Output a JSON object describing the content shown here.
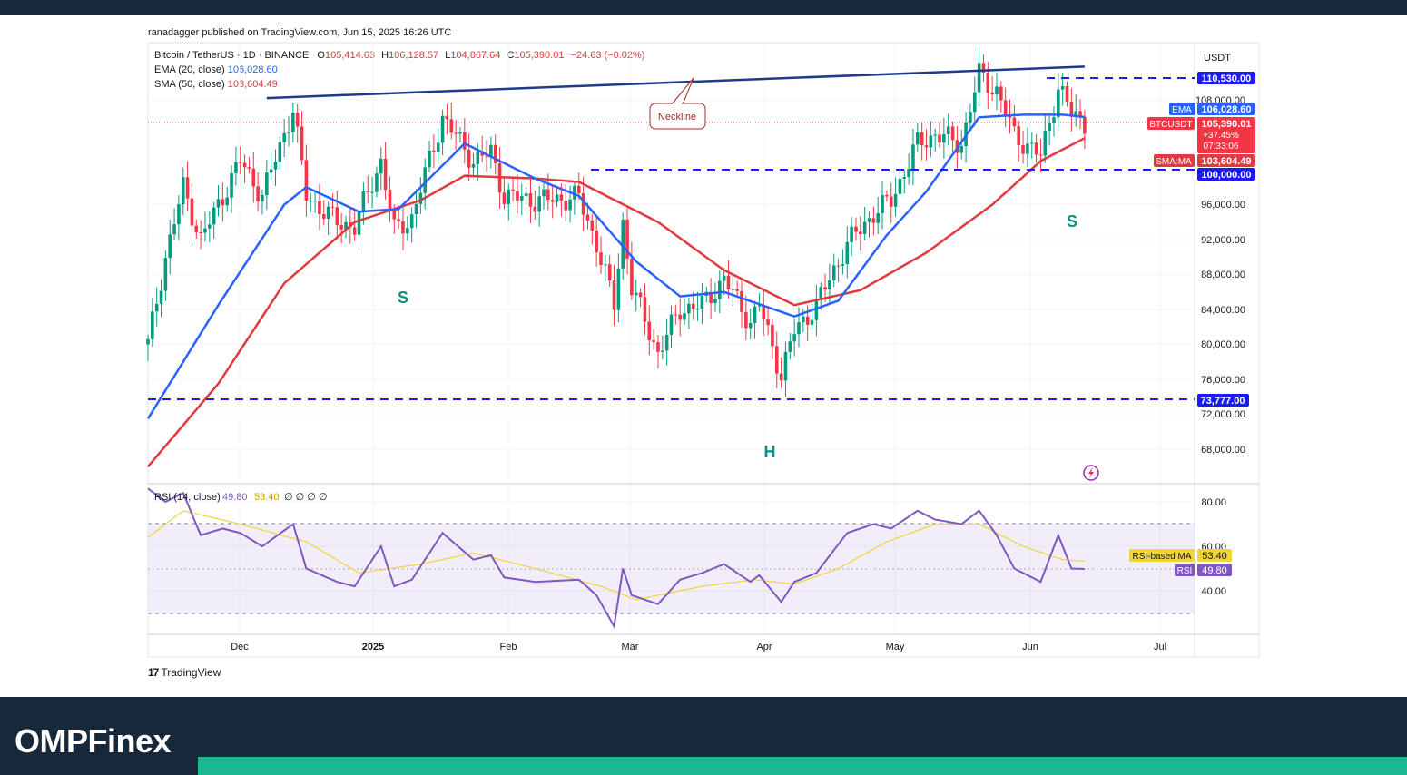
{
  "header": {
    "publisher": "ranadagger published on TradingView.com, Jun 15, 2025 16:26 UTC"
  },
  "legend": {
    "symbol": "Bitcoin / TetherUS · 1D · BINANCE",
    "open_label": "O",
    "open": "105,414.63",
    "high_label": "H",
    "high": "106,128.57",
    "low_label": "L",
    "low": "104,867.64",
    "close_label": "C",
    "close": "105,390.01",
    "change": "−24.63 (−0.02%)",
    "ema_label": "EMA (20, close)",
    "ema_value": "106,028.60",
    "sma_label": "SMA (50, close)",
    "sma_value": "103,604.49"
  },
  "price_axis": {
    "currency": "USDT",
    "ticks": [
      "108,000.00",
      "96,000.00",
      "92,000.00",
      "88,000.00",
      "84,000.00",
      "80,000.00",
      "76,000.00",
      "72,000.00",
      "68,000.00"
    ],
    "tags": {
      "r110": "110,530.00",
      "ema_name": "EMA",
      "ema": "106,028.60",
      "btc_name": "BTCUSDT",
      "btc_price": "105,390.01",
      "btc_pct": "+37.45%",
      "btc_time": "07:33:06",
      "sma_name": "SMA:MA",
      "sma": "103,604.49",
      "r100": "100,000.00",
      "r73": "73,777.00"
    }
  },
  "rsi": {
    "label": "RSI (14, close)",
    "value": "49.80",
    "ma_value": "53.40",
    "zeros": "∅ ∅ ∅ ∅",
    "ticks": [
      "80.00",
      "60.00",
      "40.00"
    ],
    "tag_ma_name": "RSI-based MA",
    "tag_ma": "53.40",
    "tag_rsi_name": "RSI",
    "tag_rsi": "49.80"
  },
  "time_axis": [
    "Dec",
    "2025",
    "Feb",
    "Mar",
    "Apr",
    "May",
    "Jun",
    "Jul"
  ],
  "annotations": {
    "neckline": "Neckline",
    "left_shoulder": "S",
    "head": "H",
    "right_shoulder": "S"
  },
  "footer": {
    "tradingview": "TradingView",
    "brand": "OMPFinex"
  },
  "colors": {
    "ema": "#2962ff",
    "sma": "#e03a3e",
    "up": "#089981",
    "down": "#f23645",
    "rsi": "#7e57c2",
    "rsi_ma": "#f2d338",
    "level": "#1a1aff",
    "neckline": "#1e3a8a",
    "footer_bg": "#17283a",
    "accent": "#1db892",
    "pattern_text": "#0d8f7e"
  },
  "chart_data": [
    {
      "type": "line",
      "title": "Bitcoin / TetherUS · 1D · BINANCE",
      "ylim": [
        64000,
        113000
      ],
      "x_range": [
        "2024-11-14",
        "2025-07-10"
      ],
      "levels": [
        110530,
        100000,
        73777
      ],
      "neckline": [
        [
          "2024-12-11",
          108200
        ],
        [
          "2025-06-15",
          111800
        ]
      ],
      "ema_knots": [
        [
          "2024-11-14",
          71500
        ],
        [
          "2024-11-30",
          84500
        ],
        [
          "2024-12-15",
          96000
        ],
        [
          "2024-12-20",
          98000
        ],
        [
          "2025-01-01",
          95200
        ],
        [
          "2025-01-10",
          95500
        ],
        [
          "2025-01-25",
          103000
        ],
        [
          "2025-02-10",
          99000
        ],
        [
          "2025-02-20",
          97000
        ],
        [
          "2025-03-05",
          89500
        ],
        [
          "2025-03-15",
          85500
        ],
        [
          "2025-03-25",
          86000
        ],
        [
          "2025-04-10",
          83200
        ],
        [
          "2025-04-20",
          85000
        ],
        [
          "2025-05-01",
          92500
        ],
        [
          "2025-05-10",
          97500
        ],
        [
          "2025-05-22",
          106000
        ],
        [
          "2025-06-01",
          106300
        ],
        [
          "2025-06-10",
          106300
        ],
        [
          "2025-06-15",
          106028.6
        ]
      ],
      "sma_knots": [
        [
          "2024-11-14",
          66000
        ],
        [
          "2024-11-30",
          75500
        ],
        [
          "2024-12-15",
          87000
        ],
        [
          "2024-12-31",
          94000
        ],
        [
          "2025-01-15",
          96500
        ],
        [
          "2025-01-25",
          99300
        ],
        [
          "2025-02-10",
          99000
        ],
        [
          "2025-02-20",
          98600
        ],
        [
          "2025-03-10",
          94000
        ],
        [
          "2025-03-25",
          88500
        ],
        [
          "2025-04-10",
          84500
        ],
        [
          "2025-04-25",
          86200
        ],
        [
          "2025-05-10",
          90500
        ],
        [
          "2025-05-25",
          96000
        ],
        [
          "2025-06-05",
          101000
        ],
        [
          "2025-06-15",
          103604.49
        ]
      ],
      "price_knots": [
        [
          "2024-11-14",
          80000
        ],
        [
          "2024-11-18",
          90000
        ],
        [
          "2024-11-22",
          98000
        ],
        [
          "2024-11-26",
          92000
        ],
        [
          "2024-12-01",
          97000
        ],
        [
          "2024-12-05",
          101000
        ],
        [
          "2024-12-10",
          97000
        ],
        [
          "2024-12-17",
          107000
        ],
        [
          "2024-12-20",
          97000
        ],
        [
          "2024-12-27",
          94000
        ],
        [
          "2024-12-31",
          93500
        ],
        [
          "2025-01-06",
          101000
        ],
        [
          "2025-01-09",
          93000
        ],
        [
          "2025-01-13",
          94500
        ],
        [
          "2025-01-20",
          106000
        ],
        [
          "2025-01-27",
          101000
        ],
        [
          "2025-01-31",
          102000
        ],
        [
          "2025-02-03",
          97000
        ],
        [
          "2025-02-10",
          96500
        ],
        [
          "2025-02-20",
          96800
        ],
        [
          "2025-02-24",
          91500
        ],
        [
          "2025-02-28",
          84500
        ],
        [
          "2025-03-02",
          94000
        ],
        [
          "2025-03-04",
          86500
        ],
        [
          "2025-03-10",
          79000
        ],
        [
          "2025-03-15",
          84000
        ],
        [
          "2025-03-20",
          84500
        ],
        [
          "2025-03-25",
          87500
        ],
        [
          "2025-03-31",
          82500
        ],
        [
          "2025-04-02",
          84500
        ],
        [
          "2025-04-07",
          76500
        ],
        [
          "2025-04-10",
          81500
        ],
        [
          "2025-04-15",
          84500
        ],
        [
          "2025-04-22",
          91500
        ],
        [
          "2025-04-28",
          95000
        ],
        [
          "2025-05-02",
          96500
        ],
        [
          "2025-05-08",
          103000
        ],
        [
          "2025-05-12",
          104000
        ],
        [
          "2025-05-18",
          103000
        ],
        [
          "2025-05-22",
          111000
        ],
        [
          "2025-05-26",
          109000
        ],
        [
          "2025-05-30",
          104000
        ],
        [
          "2025-06-05",
          101500
        ],
        [
          "2025-06-09",
          109500
        ],
        [
          "2025-06-12",
          106500
        ],
        [
          "2025-06-15",
          105390.01
        ]
      ]
    },
    {
      "type": "line",
      "title": "RSI (14, close)",
      "ylim": [
        22,
        90
      ],
      "bands": [
        70,
        50,
        30
      ],
      "series": [
        {
          "name": "RSI",
          "last": 49.8
        },
        {
          "name": "RSI-based MA",
          "last": 53.4
        }
      ],
      "rsi_knots": [
        [
          "2024-11-14",
          86
        ],
        [
          "2024-11-18",
          80
        ],
        [
          "2024-11-22",
          84
        ],
        [
          "2024-11-26",
          65
        ],
        [
          "2024-12-01",
          68
        ],
        [
          "2024-12-05",
          66
        ],
        [
          "2024-12-10",
          60
        ],
        [
          "2024-12-17",
          70
        ],
        [
          "2024-12-20",
          50
        ],
        [
          "2024-12-27",
          44
        ],
        [
          "2024-12-31",
          42
        ],
        [
          "2025-01-06",
          60
        ],
        [
          "2025-01-09",
          42
        ],
        [
          "2025-01-13",
          45
        ],
        [
          "2025-01-20",
          66
        ],
        [
          "2025-01-27",
          54
        ],
        [
          "2025-01-31",
          56
        ],
        [
          "2025-02-03",
          46
        ],
        [
          "2025-02-10",
          44
        ],
        [
          "2025-02-20",
          45
        ],
        [
          "2025-02-24",
          38
        ],
        [
          "2025-02-28",
          24
        ],
        [
          "2025-03-02",
          50
        ],
        [
          "2025-03-04",
          38
        ],
        [
          "2025-03-10",
          34
        ],
        [
          "2025-03-15",
          45
        ],
        [
          "2025-03-20",
          48
        ],
        [
          "2025-03-25",
          52
        ],
        [
          "2025-03-31",
          44
        ],
        [
          "2025-04-02",
          47
        ],
        [
          "2025-04-07",
          35
        ],
        [
          "2025-04-10",
          44
        ],
        [
          "2025-04-15",
          48
        ],
        [
          "2025-04-22",
          66
        ],
        [
          "2025-04-28",
          70
        ],
        [
          "2025-05-02",
          68
        ],
        [
          "2025-05-08",
          76
        ],
        [
          "2025-05-12",
          72
        ],
        [
          "2025-05-18",
          70
        ],
        [
          "2025-05-22",
          76
        ],
        [
          "2025-05-26",
          65
        ],
        [
          "2025-05-30",
          50
        ],
        [
          "2025-06-05",
          44
        ],
        [
          "2025-06-09",
          65
        ],
        [
          "2025-06-12",
          50
        ],
        [
          "2025-06-15",
          49.8
        ]
      ],
      "ma_knots": [
        [
          "2024-11-14",
          64
        ],
        [
          "2024-11-22",
          76
        ],
        [
          "2024-12-05",
          70
        ],
        [
          "2024-12-20",
          62
        ],
        [
          "2025-01-01",
          48
        ],
        [
          "2025-01-15",
          52
        ],
        [
          "2025-01-27",
          57
        ],
        [
          "2025-02-10",
          50
        ],
        [
          "2025-02-25",
          42
        ],
        [
          "2025-03-05",
          36
        ],
        [
          "2025-03-20",
          42
        ],
        [
          "2025-04-01",
          45
        ],
        [
          "2025-04-10",
          43
        ],
        [
          "2025-04-20",
          50
        ],
        [
          "2025-05-01",
          62
        ],
        [
          "2025-05-12",
          70
        ],
        [
          "2025-05-22",
          70
        ],
        [
          "2025-06-01",
          60
        ],
        [
          "2025-06-10",
          54
        ],
        [
          "2025-06-15",
          53.4
        ]
      ]
    }
  ]
}
